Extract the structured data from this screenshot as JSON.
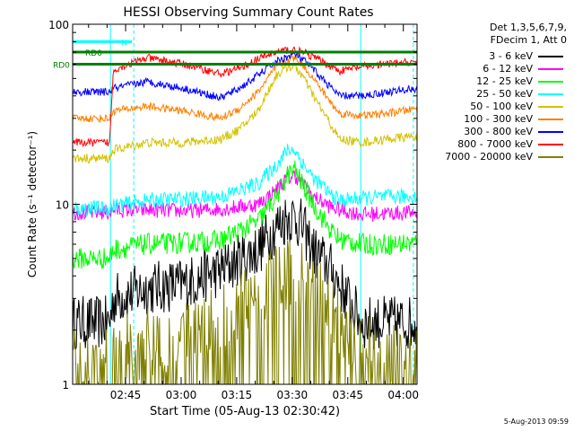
{
  "chart_data": {
    "type": "line",
    "title": "HESSI Observing Summary Count Rates",
    "xlabel": "Start Time (05-Aug-13 02:30:42)",
    "ylabel": "Count Rate (s⁻¹ detector⁻¹)",
    "yscale": "log",
    "ylim": [
      1,
      100
    ],
    "xlim_minutes": [
      0,
      93
    ],
    "x_tick_labels": [
      "02:45",
      "03:00",
      "03:15",
      "03:30",
      "03:45",
      "04:00"
    ],
    "x_tick_minutes": [
      14.3,
      29.3,
      44.3,
      59.3,
      74.3,
      89.3
    ],
    "y_tick_labels": [
      "1",
      "10",
      "100"
    ],
    "grid": false,
    "legend_position": "right",
    "legend_header": [
      "Det 1,3,5,6,7,9,",
      "FDecim 1, Att 0"
    ],
    "series": [
      {
        "name": "3 - 6 keV",
        "color": "#000000",
        "x": [
          0,
          10,
          11,
          20,
          30,
          40,
          50,
          55,
          58,
          60,
          62,
          65,
          70,
          72,
          78,
          85,
          93
        ],
        "y": [
          2.2,
          2.2,
          3,
          3.4,
          3.6,
          4.3,
          5.6,
          7.5,
          8.5,
          8.5,
          7.5,
          5.5,
          4.3,
          3.6,
          2.2,
          2.2,
          2.2
        ]
      },
      {
        "name": "6 - 12 keV",
        "color": "#ff00ff",
        "x": [
          0,
          10,
          11,
          20,
          30,
          40,
          50,
          55,
          58,
          60,
          62,
          65,
          70,
          72,
          78,
          85,
          93
        ],
        "y": [
          9,
          9,
          9.3,
          9.3,
          9.2,
          9.4,
          10,
          12,
          14,
          14.5,
          13,
          11,
          9.6,
          9.3,
          8.8,
          8.9,
          9
        ]
      },
      {
        "name": "12 - 25 keV",
        "color": "#00ff00",
        "x": [
          0,
          10,
          11,
          20,
          30,
          40,
          50,
          55,
          58,
          60,
          62,
          65,
          70,
          72,
          78,
          85,
          93
        ],
        "y": [
          5,
          5,
          5.6,
          6,
          6.1,
          6.3,
          8,
          11,
          14.5,
          15.5,
          13,
          10,
          7,
          6.4,
          6,
          6,
          6.1
        ]
      },
      {
        "name": "25 - 50 keV",
        "color": "#00ffff",
        "x": [
          0,
          10,
          11,
          20,
          30,
          40,
          50,
          55,
          58,
          60,
          62,
          65,
          70,
          72,
          78,
          85,
          93
        ],
        "y": [
          9.5,
          9.5,
          9.8,
          10.5,
          10.7,
          11,
          13,
          16.5,
          20,
          20,
          17,
          14,
          11.2,
          10.5,
          10.8,
          11,
          11
        ]
      },
      {
        "name": "50 - 100 keV",
        "color": "#d4c200",
        "x": [
          0,
          10,
          11,
          20,
          30,
          40,
          45,
          50,
          55,
          58,
          60,
          62,
          65,
          70,
          72,
          78,
          85,
          93
        ],
        "y": [
          18,
          18,
          20,
          22,
          22,
          23,
          26,
          33,
          52,
          58,
          58,
          52,
          40,
          27,
          23,
          22,
          23,
          24
        ]
      },
      {
        "name": "100 - 300 keV",
        "color": "#ff8000",
        "x": [
          0,
          10,
          11,
          20,
          30,
          40,
          45,
          50,
          55,
          58,
          60,
          62,
          65,
          70,
          72,
          78,
          85,
          93
        ],
        "y": [
          30,
          30,
          33,
          35,
          33,
          30,
          34,
          42,
          58,
          63,
          65,
          60,
          50,
          36,
          32,
          31,
          32,
          34
        ]
      },
      {
        "name": "300 - 800 keV",
        "color": "#0000ff",
        "x": [
          0,
          10,
          11,
          20,
          30,
          40,
          45,
          50,
          55,
          58,
          60,
          62,
          65,
          70,
          72,
          78,
          85,
          93
        ],
        "y": [
          42,
          42,
          44,
          48,
          44,
          39,
          44,
          52,
          62,
          66,
          68,
          64,
          56,
          44,
          40,
          40,
          42,
          44
        ]
      },
      {
        "name": "800 - 7000 keV",
        "color": "#ff0000",
        "x": [
          0,
          10,
          11,
          20,
          30,
          40,
          45,
          50,
          55,
          58,
          60,
          62,
          65,
          70,
          72,
          78,
          85,
          93
        ],
        "y": [
          22,
          22,
          56,
          65,
          60,
          53,
          57,
          64,
          70,
          72,
          72,
          70,
          66,
          58,
          55,
          58,
          60,
          62
        ]
      },
      {
        "name": "7000 - 20000 keV",
        "color": "#808000",
        "x": [
          0,
          10,
          11,
          20,
          30,
          40,
          45,
          50,
          55,
          58,
          60,
          62,
          65,
          70,
          72,
          78,
          85,
          93
        ],
        "y": [
          1.3,
          1.3,
          1.5,
          1.7,
          1.9,
          2.3,
          2.7,
          3.2,
          3.8,
          4.1,
          4.2,
          4.0,
          3.5,
          2.8,
          2.2,
          1.6,
          1.4,
          1.3
        ]
      }
    ],
    "annotations": [
      {
        "text": "RD0",
        "color": "#008000",
        "y": 70,
        "x_start": 0,
        "x_end": 93
      },
      {
        "text": "RD0",
        "color": "#008000",
        "y": 60,
        "x_start": 0,
        "x_end": 93
      },
      {
        "text": "N",
        "color": "#00ffff",
        "y": 80,
        "x_start": 0,
        "x_end": 16
      }
    ],
    "stamp": "5-Aug-2013 09:59"
  }
}
